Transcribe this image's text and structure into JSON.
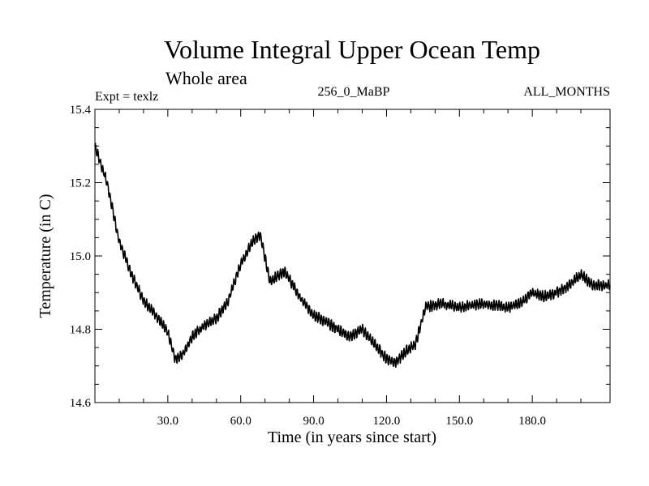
{
  "chart_data": {
    "type": "line",
    "title": "Volume Integral Upper Ocean Temp",
    "subtitle": "Whole area",
    "annotations": {
      "expt": "Expt = texlz",
      "run": "256_0_MaBP",
      "months": "ALL_MONTHS"
    },
    "xlabel": "Time (in years since start)",
    "ylabel": "Temperature (in C)",
    "xlim": [
      0,
      212
    ],
    "ylim": [
      14.6,
      15.4
    ],
    "x_ticks": [
      {
        "value": 30,
        "label": "30.0"
      },
      {
        "value": 60,
        "label": "60.0"
      },
      {
        "value": 90,
        "label": "90.0"
      },
      {
        "value": 120,
        "label": "120.0"
      },
      {
        "value": 150,
        "label": "150.0"
      },
      {
        "value": 180,
        "label": "180.0"
      }
    ],
    "y_ticks": [
      {
        "value": 14.6,
        "label": "14.6"
      },
      {
        "value": 14.8,
        "label": "14.8"
      },
      {
        "value": 15.0,
        "label": "15.0"
      },
      {
        "value": 15.2,
        "label": "15.2"
      },
      {
        "value": 15.4,
        "label": "15.4"
      }
    ],
    "seasonal_amplitude": 0.012,
    "series": [
      {
        "name": "temperature",
        "color": "#000000",
        "x": [
          0,
          5,
          10,
          15,
          20,
          25,
          30,
          33,
          36,
          40,
          45,
          50,
          55,
          60,
          65,
          68,
          72,
          78,
          85,
          90,
          95,
          100,
          105,
          110,
          115,
          120,
          124,
          128,
          132,
          136,
          142,
          150,
          160,
          170,
          175,
          180,
          185,
          190,
          195,
          200,
          205,
          212
        ],
        "y": [
          15.3,
          15.2,
          15.04,
          14.95,
          14.88,
          14.84,
          14.79,
          14.72,
          14.73,
          14.78,
          14.81,
          14.83,
          14.88,
          14.98,
          15.04,
          15.06,
          14.93,
          14.96,
          14.88,
          14.84,
          14.82,
          14.8,
          14.78,
          14.8,
          14.76,
          14.72,
          14.71,
          14.74,
          14.76,
          14.86,
          14.87,
          14.86,
          14.87,
          14.86,
          14.87,
          14.9,
          14.89,
          14.9,
          14.92,
          14.95,
          14.92,
          14.92
        ]
      }
    ]
  }
}
